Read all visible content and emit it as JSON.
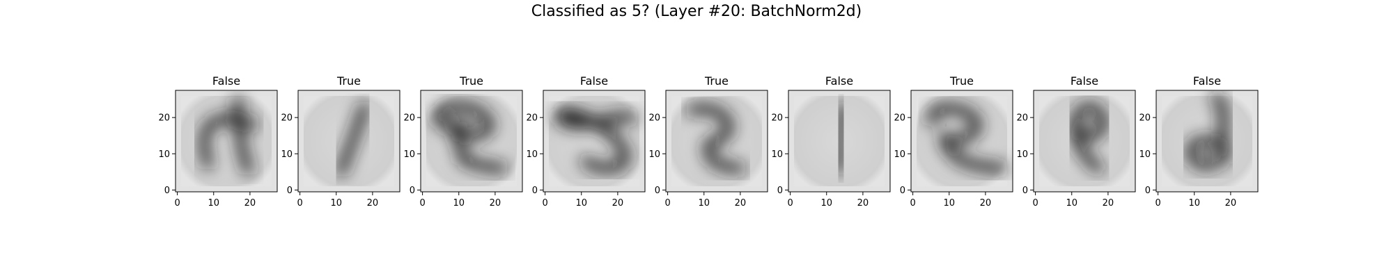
{
  "figure": {
    "title": "Classified as 5? (Layer #20: BatchNorm2d)"
  },
  "chart_data": {
    "type": "heatmap",
    "title": "Classified as 5? (Layer #20: BatchNorm2d)",
    "colormap": "gray",
    "image_size": [
      28,
      28
    ],
    "xticks": [
      0,
      10,
      20
    ],
    "yticks": [
      0,
      10,
      20
    ],
    "xlim": [
      -0.5,
      27.5
    ],
    "ylim": [
      27.5,
      -0.5
    ],
    "panels": [
      {
        "title": "False",
        "digit": "4"
      },
      {
        "title": "True",
        "digit": "1"
      },
      {
        "title": "True",
        "digit": "5"
      },
      {
        "title": "False",
        "digit": "2"
      },
      {
        "title": "True",
        "digit": "5"
      },
      {
        "title": "False",
        "digit": "1"
      },
      {
        "title": "True",
        "digit": "5"
      },
      {
        "title": "False",
        "digit": "6"
      },
      {
        "title": "False",
        "digit": "9"
      }
    ]
  }
}
